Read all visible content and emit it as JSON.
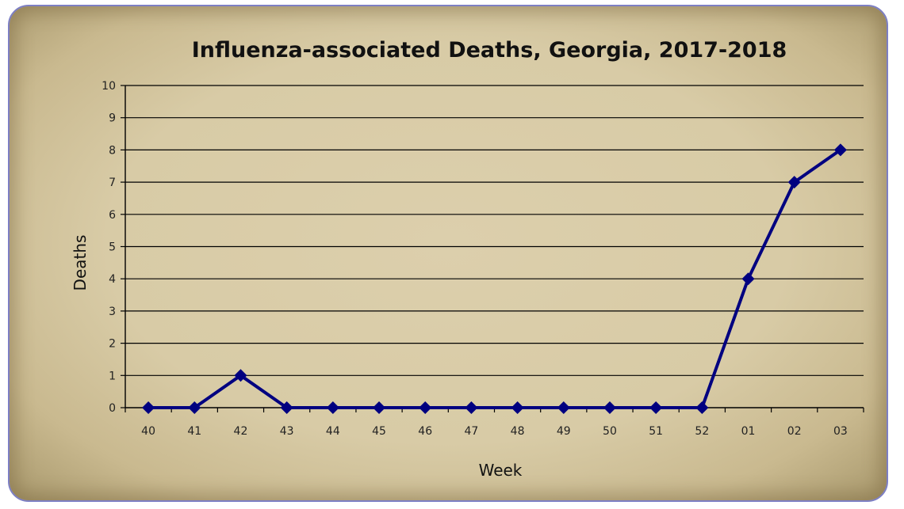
{
  "chart_data": {
    "type": "line",
    "title": "Influenza-associated Deaths, Georgia, 2017-2018",
    "xlabel": "Week",
    "ylabel": "Deaths",
    "categories": [
      "40",
      "41",
      "42",
      "43",
      "44",
      "45",
      "46",
      "47",
      "48",
      "49",
      "50",
      "51",
      "52",
      "01",
      "02",
      "03"
    ],
    "series": [
      {
        "values": [
          0,
          0,
          1,
          0,
          0,
          0,
          0,
          0,
          0,
          0,
          0,
          0,
          0,
          4,
          7,
          8
        ],
        "color": "#000080"
      }
    ],
    "ylim": [
      0,
      10
    ],
    "yticks": [
      0,
      1,
      2,
      3,
      4,
      5,
      6,
      7,
      8,
      9,
      10
    ],
    "grid": true,
    "marker": "diamond",
    "legend": "none"
  },
  "colors": {
    "background": "#d8cba6",
    "border": "#7d7fc4",
    "line": "#000080",
    "grid": "#000000"
  }
}
